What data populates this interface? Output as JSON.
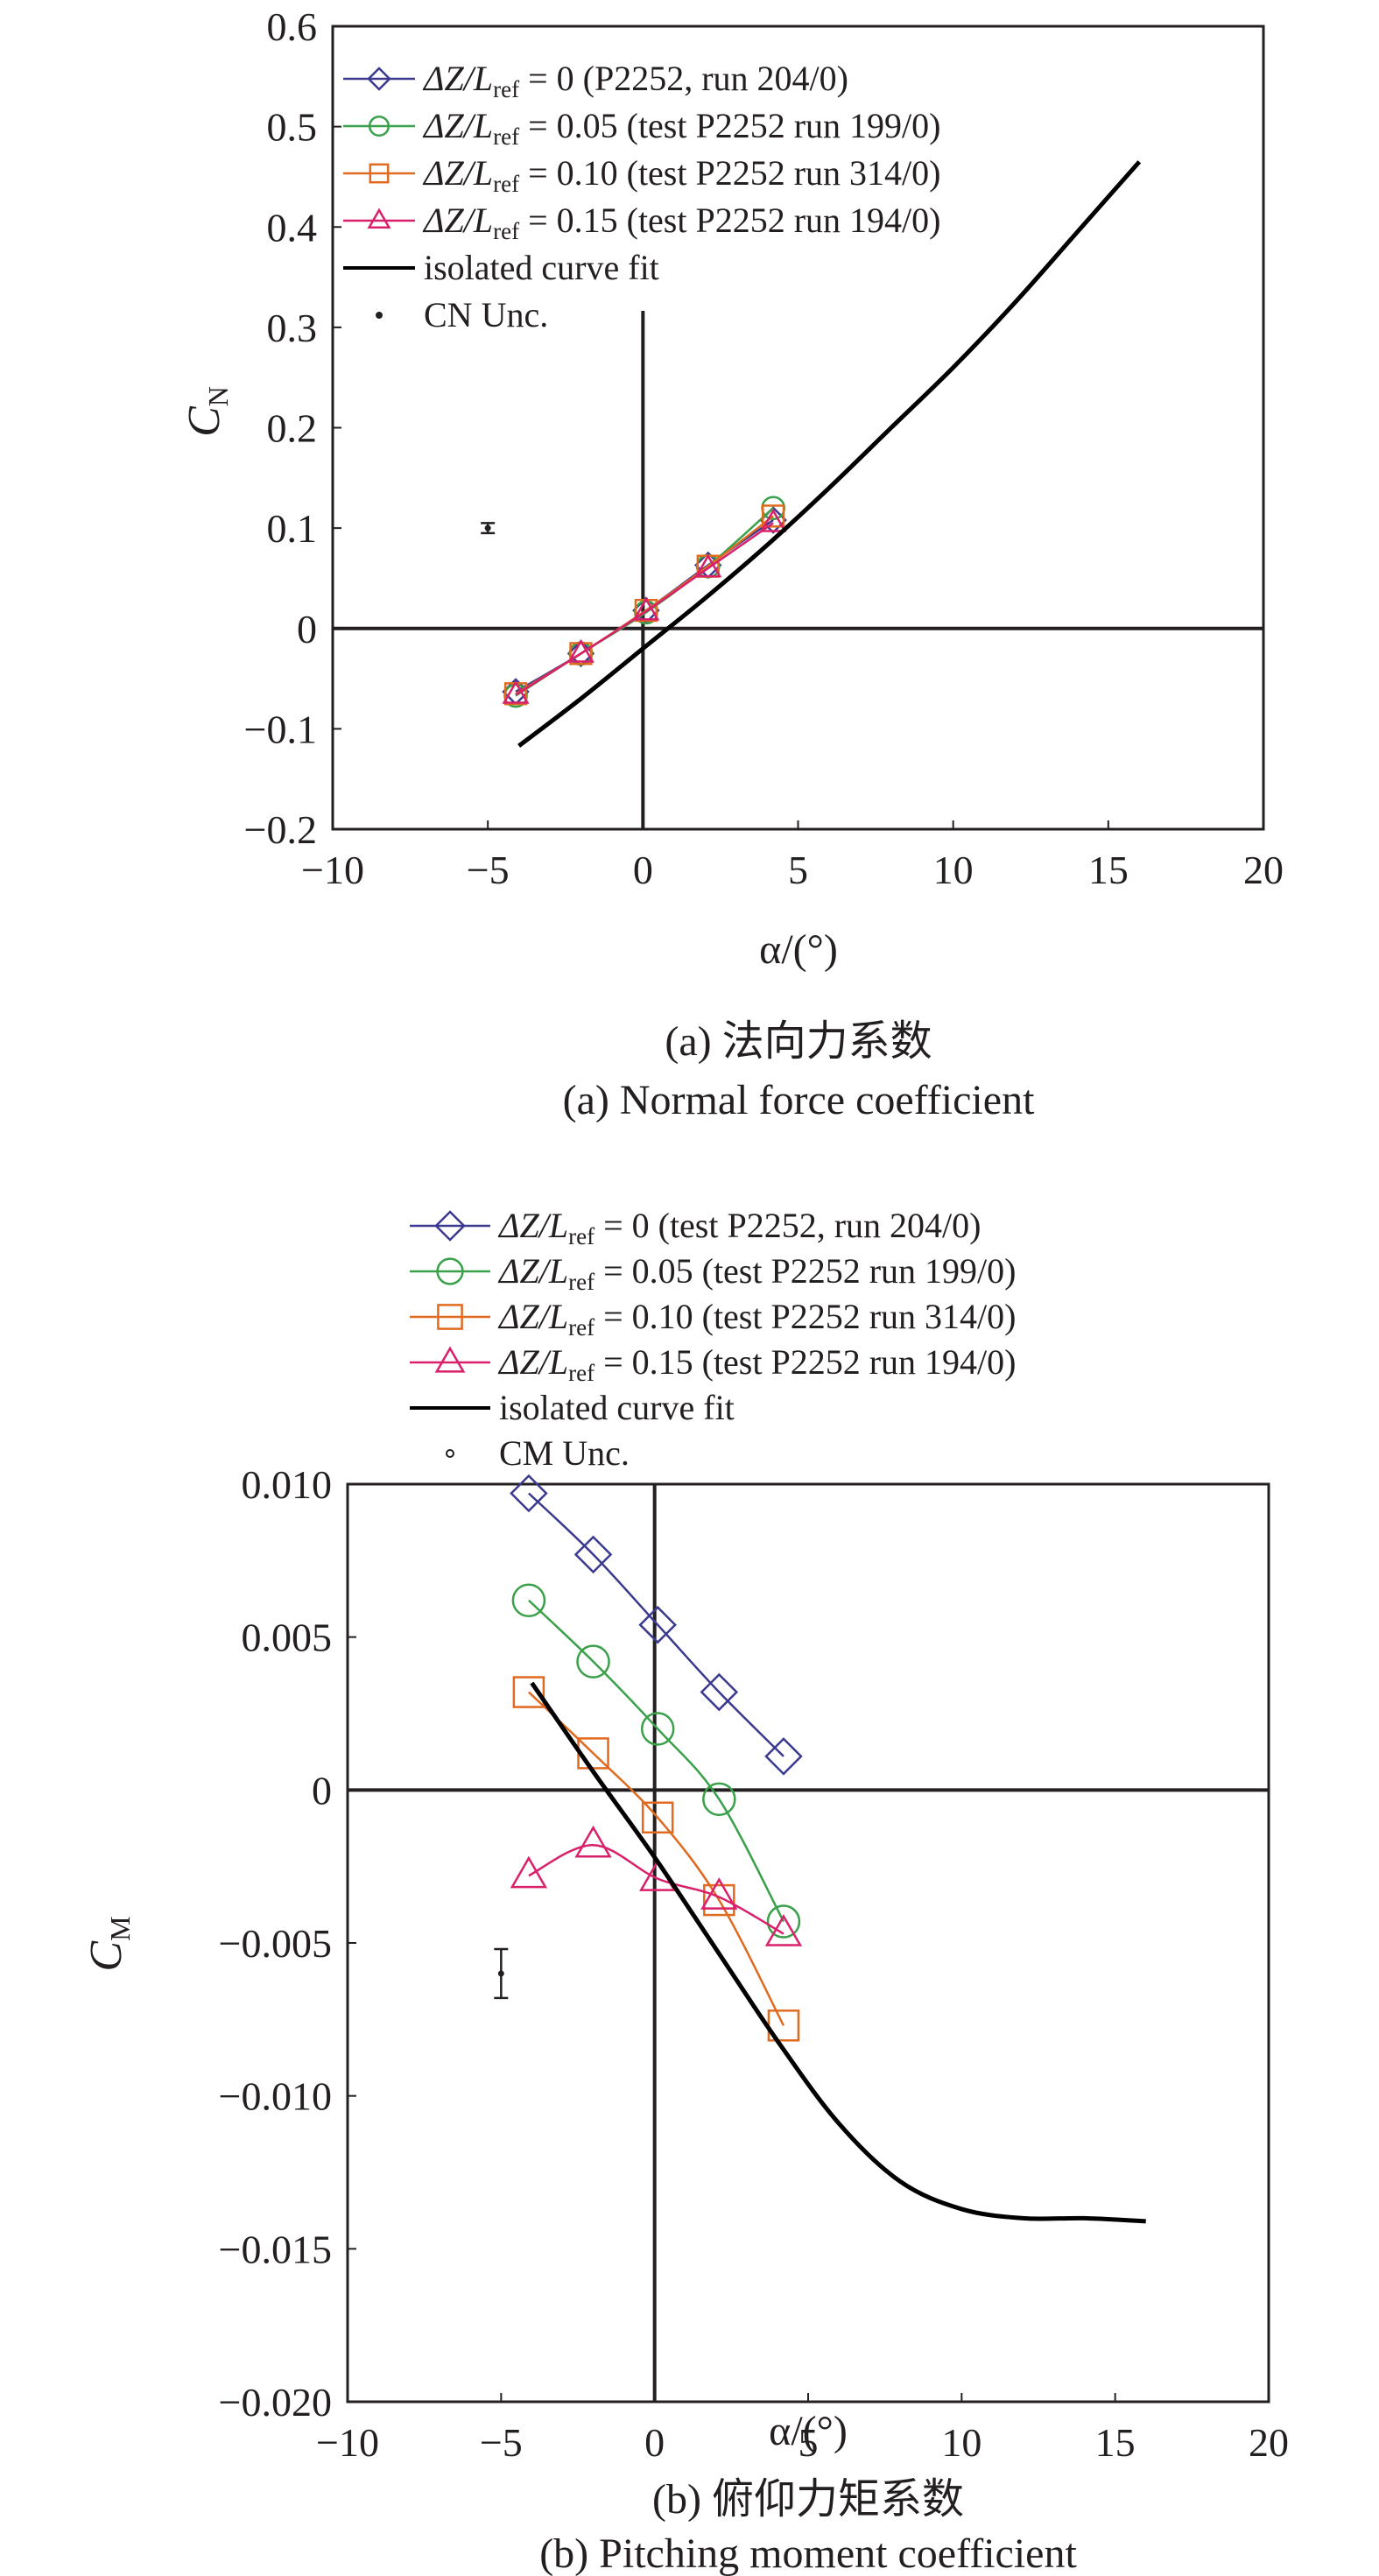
{
  "chart_data": [
    {
      "type": "line",
      "ylabel": "C",
      "ylabel_sub": "N",
      "xlabel": "α/(°)",
      "caption_cn": "(a) 法向力系数",
      "caption_en": "(a) Normal force coefficient",
      "xlim": [
        -10,
        20
      ],
      "ylim": [
        -0.2,
        0.6
      ],
      "xticks": [
        -10,
        -5,
        0,
        5,
        10,
        15,
        20
      ],
      "xtick_labels": [
        "−10",
        "−5",
        "0",
        "5",
        "10",
        "15",
        "20"
      ],
      "yticks": [
        -0.2,
        -0.1,
        0,
        0.1,
        0.2,
        0.3,
        0.4,
        0.5,
        0.6
      ],
      "ytick_labels": [
        "−0.2",
        "−0.1",
        "0",
        "0.1",
        "0.2",
        "0.3",
        "0.4",
        "0.5",
        "0.6"
      ],
      "grid": false,
      "legend_position": "top-left",
      "series": [
        {
          "name_pre": "ΔZ/L",
          "name_sub": "ref",
          "name_post": " = 0 (P2252, run 204/0)",
          "color": "#3b3a8f",
          "marker": "diamond",
          "x": [
            -4.1,
            -2,
            0.1,
            2.1,
            4.2
          ],
          "y": [
            -0.063,
            -0.025,
            0.018,
            0.063,
            0.108
          ]
        },
        {
          "name_pre": "ΔZ/L",
          "name_sub": "ref",
          "name_post": " = 0.05 (test P2252 run 199/0)",
          "color": "#3aa04a",
          "marker": "circle",
          "x": [
            -4.1,
            -2,
            0.1,
            2.1,
            4.2
          ],
          "y": [
            -0.067,
            -0.025,
            0.016,
            0.062,
            0.12
          ]
        },
        {
          "name_pre": "ΔZ/L",
          "name_sub": "ref",
          "name_post": " = 0.10 (test P2252 run 314/0)",
          "color": "#e06a20",
          "marker": "square",
          "x": [
            -4.1,
            -2,
            0.1,
            2.1,
            4.2
          ],
          "y": [
            -0.065,
            -0.025,
            0.018,
            0.062,
            0.112
          ]
        },
        {
          "name_pre": "ΔZ/L",
          "name_sub": "ref",
          "name_post": " = 0.15 (test P2252 run 194/0)",
          "color": "#d9206a",
          "marker": "triangle",
          "x": [
            -4.1,
            -2,
            0.1,
            2.1,
            4.2
          ],
          "y": [
            -0.066,
            -0.025,
            0.017,
            0.06,
            0.105
          ]
        },
        {
          "name": "isolated curve fit",
          "color": "#000000",
          "marker": "none",
          "x": [
            -4,
            -2,
            0,
            2,
            4,
            6,
            8,
            10,
            12,
            14,
            16
          ],
          "y": [
            -0.117,
            -0.07,
            -0.02,
            0.03,
            0.083,
            0.14,
            0.2,
            0.26,
            0.325,
            0.395,
            0.465
          ]
        }
      ],
      "uncertainty": {
        "name": "CN Unc.",
        "x": -5,
        "y": 0.1,
        "half_height": 0.005
      }
    },
    {
      "type": "line",
      "ylabel": "C",
      "ylabel_sub": "M",
      "xlabel": "α/(°)",
      "caption_cn": "(b) 俯仰力矩系数",
      "caption_en": "(b) Pitching moment coefficient",
      "xlim": [
        -10,
        20
      ],
      "ylim": [
        -0.02,
        0.01
      ],
      "xticks": [
        -10,
        -5,
        0,
        5,
        10,
        15,
        20
      ],
      "xtick_labels": [
        "−10",
        "−5",
        "0",
        "5",
        "10",
        "15",
        "20"
      ],
      "yticks": [
        -0.02,
        -0.015,
        -0.01,
        -0.005,
        0,
        0.005,
        0.01
      ],
      "ytick_labels": [
        "−0.020",
        "−0.015",
        "−0.010",
        "−0.005",
        "0",
        "0.005",
        "0.010"
      ],
      "grid": false,
      "legend_position": "above plot",
      "series": [
        {
          "name_pre": "ΔZ/L",
          "name_sub": "ref",
          "name_post": " = 0 (test P2252, run 204/0)",
          "color": "#3b3a8f",
          "marker": "diamond",
          "x": [
            -4.1,
            -2,
            0.1,
            2.1,
            4.2
          ],
          "y": [
            0.0097,
            0.0077,
            0.0054,
            0.0032,
            0.0011
          ]
        },
        {
          "name_pre": "ΔZ/L",
          "name_sub": "ref",
          "name_post": " = 0.05 (test P2252 run 199/0)",
          "color": "#3aa04a",
          "marker": "circle",
          "x": [
            -4.1,
            -2,
            0.1,
            2.1,
            4.2
          ],
          "y": [
            0.0062,
            0.0042,
            0.002,
            -0.0003,
            -0.0043
          ]
        },
        {
          "name_pre": "ΔZ/L",
          "name_sub": "ref",
          "name_post": " = 0.10 (test P2252 run 314/0)",
          "color": "#e06a20",
          "marker": "square",
          "x": [
            -4.1,
            -2,
            0.1,
            2.1,
            4.2
          ],
          "y": [
            0.0032,
            0.0012,
            -0.0009,
            -0.0036,
            -0.0077
          ]
        },
        {
          "name_pre": "ΔZ/L",
          "name_sub": "ref",
          "name_post": " = 0.15 (test P2252 run 194/0)",
          "color": "#d9206a",
          "marker": "triangle",
          "x": [
            -4.1,
            -2,
            0.1,
            2.1,
            4.2
          ],
          "y": [
            -0.0028,
            -0.0018,
            -0.0029,
            -0.0035,
            -0.0047
          ]
        },
        {
          "name": "isolated curve fit",
          "color": "#000000",
          "marker": "none",
          "x": [
            -4,
            -2,
            0,
            2,
            4,
            6,
            8,
            10,
            12,
            14,
            16
          ],
          "y": [
            0.0035,
            0.0006,
            -0.0022,
            -0.0052,
            -0.0082,
            -0.0109,
            -0.0128,
            -0.0137,
            -0.014,
            -0.014,
            -0.0141
          ]
        }
      ],
      "uncertainty": {
        "name": "CM Unc.",
        "x": -5,
        "y": -0.006,
        "half_height": 0.0008
      }
    }
  ]
}
